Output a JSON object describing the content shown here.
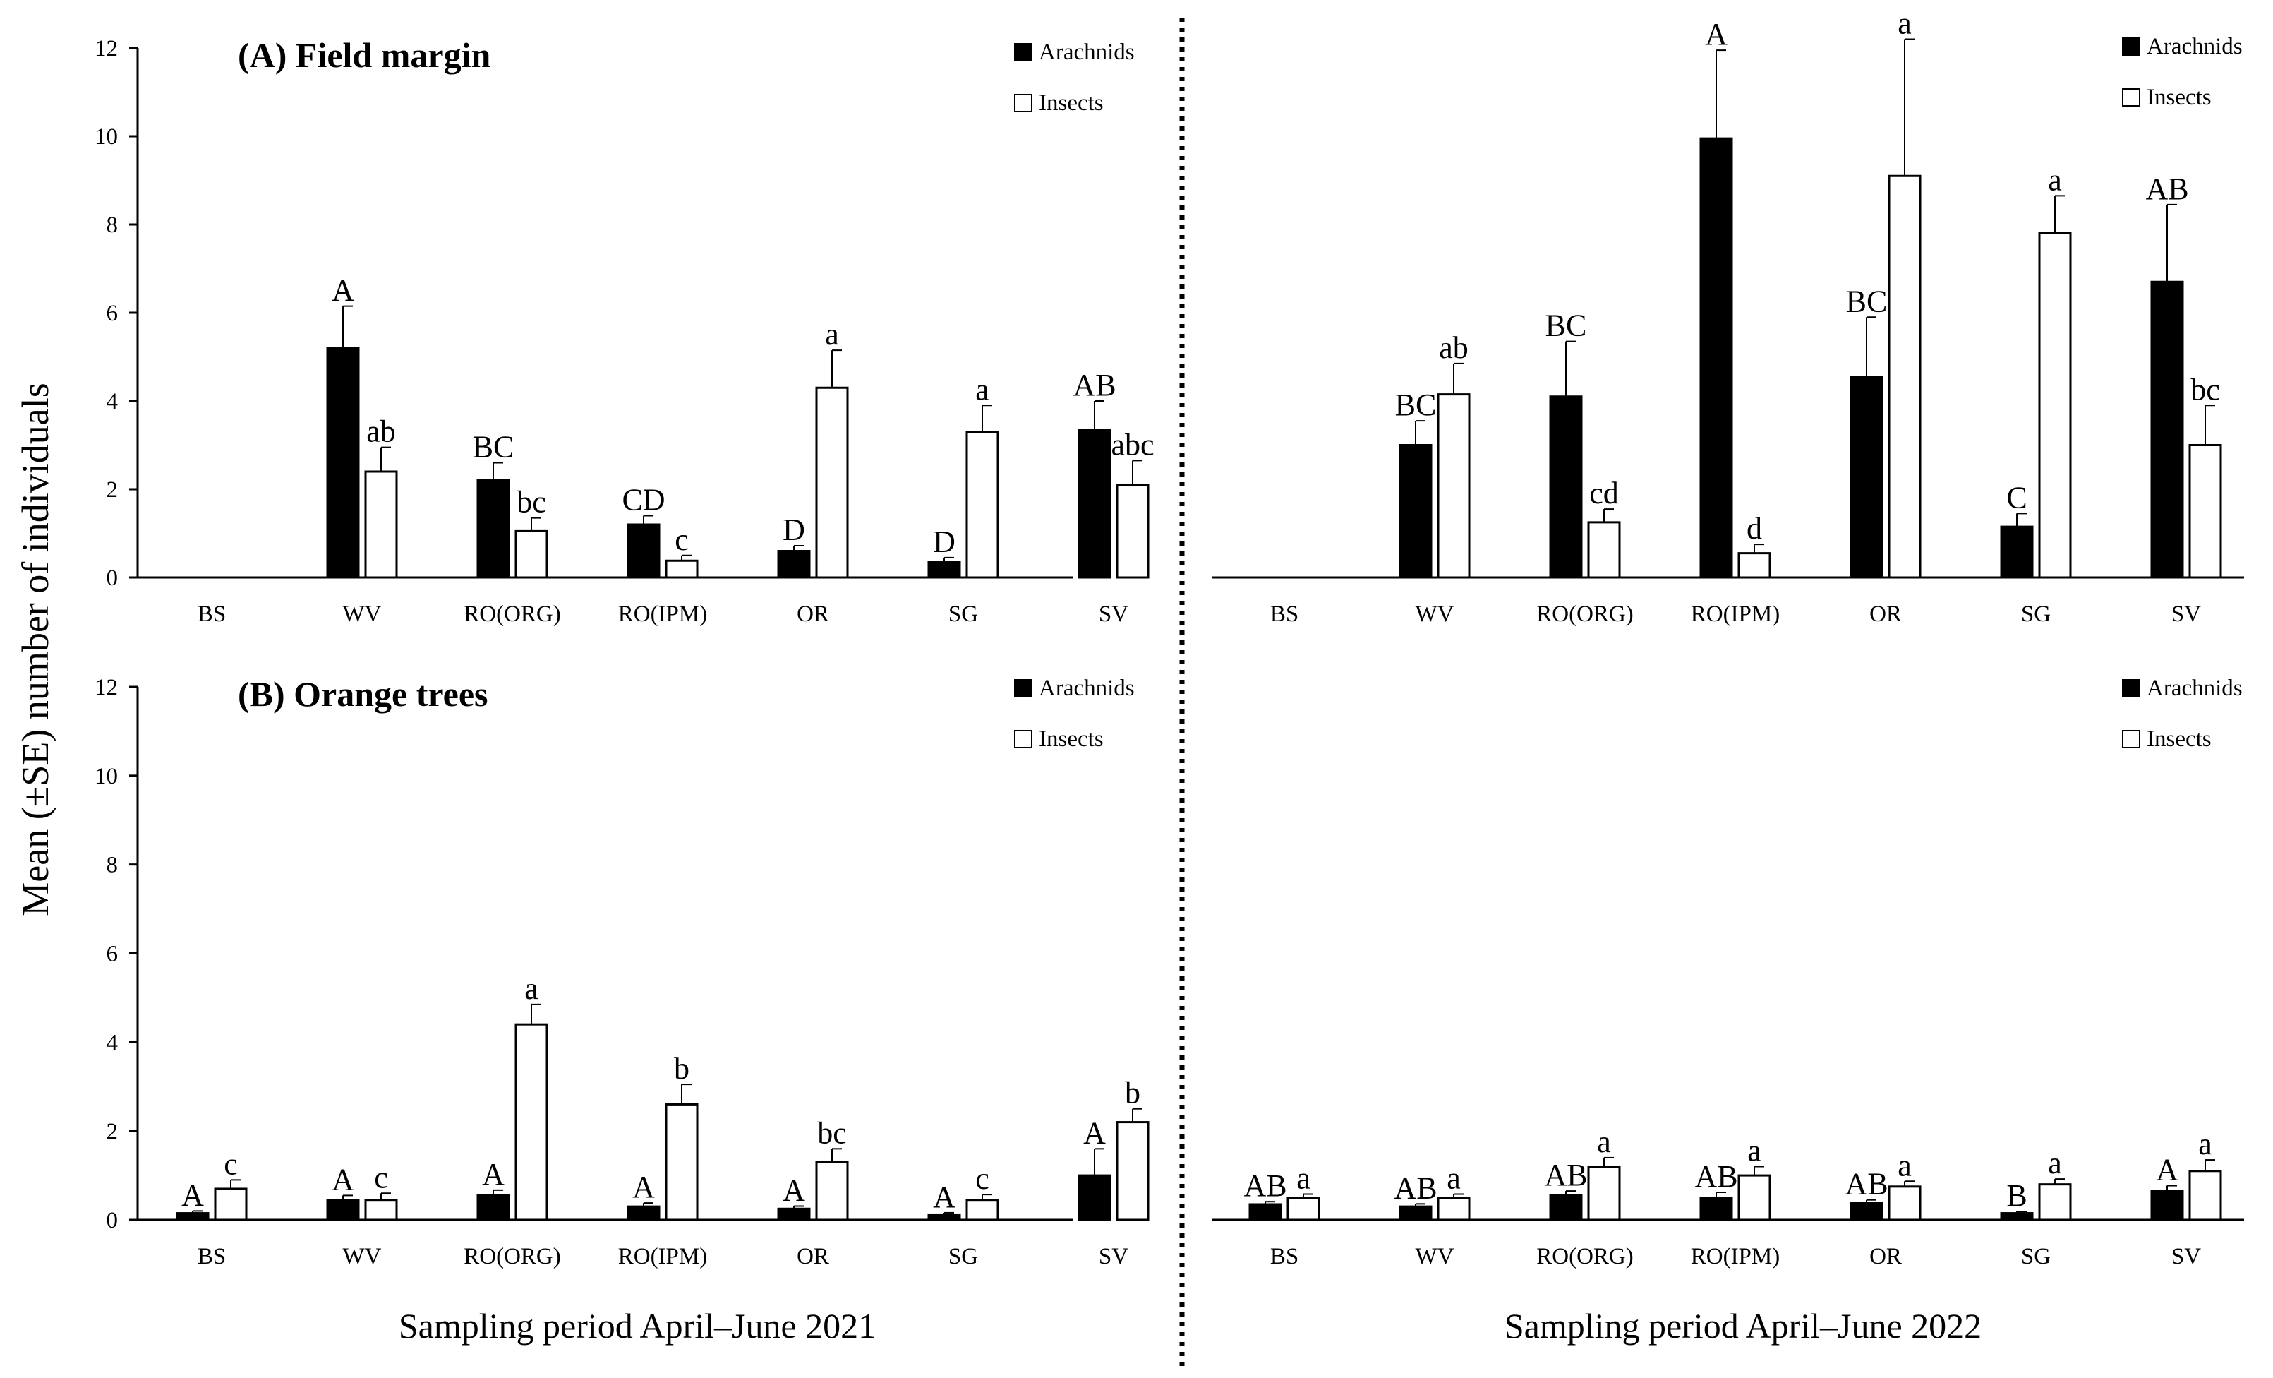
{
  "figure": {
    "y_axis_label": "Mean (±SE) number of individuals",
    "x_title_2021": "Sampling period April–June 2021",
    "x_title_2022": "Sampling period April–June 2022"
  },
  "legend": {
    "arachnids": "Arachnids",
    "insects": "Insects"
  },
  "colors": {
    "arachnids": "#000000",
    "insects": "#ffffff",
    "outline": "#000000"
  },
  "chart_data": [
    {
      "id": "A2021",
      "type": "bar",
      "title": "(A) Field margin",
      "period": "Sampling period April–June 2021",
      "ylabel": "Mean (±SE) number of individuals",
      "ylim": [
        0,
        12
      ],
      "yticks": [
        0,
        2,
        4,
        6,
        8,
        10,
        12
      ],
      "categories": [
        "BS",
        "WV",
        "RO(ORG)",
        "RO(IPM)",
        "OR",
        "SG",
        "SV"
      ],
      "series": [
        {
          "name": "Arachnids",
          "values": [
            0,
            5.2,
            2.2,
            1.2,
            0.6,
            0.35,
            3.35
          ],
          "se": [
            0,
            0.95,
            0.4,
            0.2,
            0.12,
            0.1,
            0.65
          ],
          "letters": [
            "",
            "A",
            "BC",
            "CD",
            "D",
            "D",
            "AB"
          ]
        },
        {
          "name": "Insects",
          "values": [
            0,
            2.4,
            1.05,
            0.38,
            4.3,
            3.3,
            2.1
          ],
          "se": [
            0,
            0.55,
            0.3,
            0.12,
            0.85,
            0.6,
            0.55
          ],
          "letters": [
            "",
            "ab",
            "bc",
            "c",
            "a",
            "a",
            "abc"
          ]
        }
      ]
    },
    {
      "id": "A2022",
      "type": "bar",
      "title": "",
      "period": "Sampling period April–June 2022",
      "ylim": [
        0,
        12
      ],
      "categories": [
        "BS",
        "WV",
        "RO(ORG)",
        "RO(IPM)",
        "OR",
        "SG",
        "SV"
      ],
      "series": [
        {
          "name": "Arachnids",
          "values": [
            0,
            3.0,
            4.1,
            9.95,
            4.55,
            1.15,
            6.7
          ],
          "se": [
            0,
            0.55,
            1.25,
            2.0,
            1.35,
            0.3,
            1.75
          ],
          "letters": [
            "",
            "BC",
            "BC",
            "A",
            "BC",
            "C",
            "AB"
          ]
        },
        {
          "name": "Insects",
          "values": [
            0,
            4.15,
            1.25,
            0.55,
            9.1,
            7.8,
            3.0
          ],
          "se": [
            0,
            0.7,
            0.3,
            0.2,
            3.1,
            0.85,
            0.9
          ],
          "letters": [
            "",
            "ab",
            "cd",
            "d",
            "a",
            "a",
            "bc"
          ]
        }
      ]
    },
    {
      "id": "B2021",
      "type": "bar",
      "title": "(B) Orange trees",
      "period": "Sampling period April–June 2021",
      "ylim": [
        0,
        12
      ],
      "yticks": [
        0,
        2,
        4,
        6,
        8,
        10,
        12
      ],
      "categories": [
        "BS",
        "WV",
        "RO(ORG)",
        "RO(IPM)",
        "OR",
        "SG",
        "SV"
      ],
      "series": [
        {
          "name": "Arachnids",
          "values": [
            0.15,
            0.45,
            0.55,
            0.3,
            0.25,
            0.12,
            1.0
          ],
          "se": [
            0.05,
            0.1,
            0.12,
            0.08,
            0.06,
            0.04,
            0.6
          ],
          "letters": [
            "A",
            "A",
            "A",
            "A",
            "A",
            "A",
            "A"
          ]
        },
        {
          "name": "Insects",
          "values": [
            0.7,
            0.45,
            4.4,
            2.6,
            1.3,
            0.45,
            2.2
          ],
          "se": [
            0.2,
            0.15,
            0.45,
            0.45,
            0.3,
            0.12,
            0.3
          ],
          "letters": [
            "c",
            "c",
            "a",
            "b",
            "bc",
            "c",
            "b"
          ]
        }
      ]
    },
    {
      "id": "B2022",
      "type": "bar",
      "title": "",
      "period": "Sampling period April–June 2022",
      "ylim": [
        0,
        12
      ],
      "categories": [
        "BS",
        "WV",
        "RO(ORG)",
        "RO(IPM)",
        "OR",
        "SG",
        "SV"
      ],
      "series": [
        {
          "name": "Arachnids",
          "values": [
            0.35,
            0.3,
            0.55,
            0.5,
            0.38,
            0.15,
            0.65
          ],
          "se": [
            0.06,
            0.06,
            0.1,
            0.12,
            0.07,
            0.04,
            0.12
          ],
          "letters": [
            "AB",
            "AB",
            "AB",
            "AB",
            "AB",
            "B",
            "A"
          ]
        },
        {
          "name": "Insects",
          "values": [
            0.5,
            0.5,
            1.2,
            1.0,
            0.75,
            0.8,
            1.1
          ],
          "se": [
            0.08,
            0.08,
            0.2,
            0.2,
            0.12,
            0.12,
            0.25
          ],
          "letters": [
            "a",
            "a",
            "a",
            "a",
            "a",
            "a",
            "a"
          ]
        }
      ]
    }
  ]
}
